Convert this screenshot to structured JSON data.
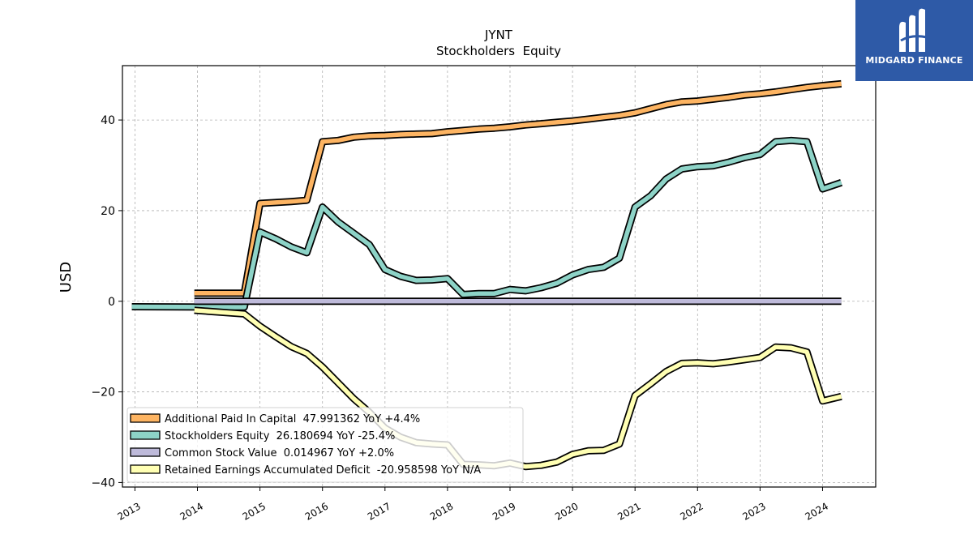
{
  "chart_data": {
    "type": "line",
    "title": "JYNT",
    "subtitle": "Stockholders  Equity",
    "ylabel": "USD",
    "xlabel": "",
    "ylim": [
      -41,
      52
    ],
    "xlim": [
      2012.8,
      2024.85
    ],
    "grid": true,
    "legend_position": "lower-left",
    "x_ticks": [
      "2013",
      "2014",
      "2015",
      "2016",
      "2017",
      "2018",
      "2019",
      "2020",
      "2021",
      "2022",
      "2023",
      "2024"
    ],
    "y_ticks": [
      -40,
      -20,
      0,
      20,
      40
    ],
    "y_tick_labels": [
      "−40",
      "−20",
      "0",
      "20",
      "40"
    ],
    "series": [
      {
        "name": "Additional Paid In Capital  47.991362 YoY +4.4%",
        "color": "#fdb462",
        "x": [
          2013.95,
          2014.75,
          2015.0,
          2015.25,
          2015.5,
          2015.75,
          2016.0,
          2016.25,
          2016.5,
          2016.75,
          2017.0,
          2017.25,
          2017.5,
          2017.75,
          2018.0,
          2018.25,
          2018.5,
          2018.75,
          2019.0,
          2019.25,
          2019.5,
          2019.75,
          2020.0,
          2020.25,
          2020.5,
          2020.75,
          2021.0,
          2021.25,
          2021.5,
          2021.75,
          2022.0,
          2022.25,
          2022.5,
          2022.75,
          2023.0,
          2023.25,
          2023.5,
          2023.75,
          2024.0,
          2024.3
        ],
        "y": [
          1.8,
          1.8,
          21.6,
          21.8,
          22.0,
          22.3,
          35.2,
          35.5,
          36.2,
          36.5,
          36.6,
          36.8,
          36.9,
          37.0,
          37.4,
          37.7,
          38.0,
          38.2,
          38.5,
          38.9,
          39.2,
          39.5,
          39.8,
          40.2,
          40.6,
          41.0,
          41.6,
          42.5,
          43.4,
          44.0,
          44.2,
          44.6,
          45.0,
          45.5,
          45.8,
          46.2,
          46.7,
          47.2,
          47.6,
          48.0
        ]
      },
      {
        "name": "Stockholders Equity  26.180694 YoY -25.4%",
        "color": "#8dd3c7",
        "x": [
          2012.95,
          2014.75,
          2015.0,
          2015.25,
          2015.5,
          2015.75,
          2016.0,
          2016.25,
          2016.5,
          2016.75,
          2017.0,
          2017.25,
          2017.5,
          2017.75,
          2018.0,
          2018.25,
          2018.5,
          2018.75,
          2019.0,
          2019.25,
          2019.5,
          2019.75,
          2020.0,
          2020.25,
          2020.5,
          2020.75,
          2021.0,
          2021.25,
          2021.5,
          2021.75,
          2022.0,
          2022.25,
          2022.5,
          2022.75,
          2023.0,
          2023.25,
          2023.5,
          2023.75,
          2024.0,
          2024.3
        ],
        "y": [
          -1.2,
          -1.3,
          15.3,
          13.8,
          12.0,
          10.7,
          20.8,
          17.5,
          15.0,
          12.5,
          7.0,
          5.5,
          4.6,
          4.7,
          5.0,
          1.5,
          1.7,
          1.7,
          2.6,
          2.3,
          3.0,
          4.0,
          5.8,
          7.0,
          7.5,
          9.5,
          20.8,
          23.3,
          27.0,
          29.2,
          29.7,
          29.9,
          30.7,
          31.7,
          32.4,
          35.2,
          35.5,
          35.2,
          24.8,
          26.2
        ]
      },
      {
        "name": "Common Stock Value  0.014967 YoY +2.0%",
        "color": "#bebada",
        "x": [
          2013.95,
          2024.3
        ],
        "y": [
          0.01,
          0.015
        ]
      },
      {
        "name": "Retained Earnings Accumulated Deficit  -20.958598 YoY N/A",
        "color": "#ffffb3",
        "x": [
          2013.95,
          2014.75,
          2015.0,
          2015.25,
          2015.5,
          2015.75,
          2016.0,
          2016.25,
          2016.5,
          2016.75,
          2017.0,
          2017.25,
          2017.5,
          2017.75,
          2018.0,
          2018.25,
          2018.5,
          2018.75,
          2019.0,
          2019.25,
          2019.5,
          2019.75,
          2020.0,
          2020.25,
          2020.5,
          2020.75,
          2021.0,
          2021.25,
          2021.5,
          2021.75,
          2022.0,
          2022.25,
          2022.5,
          2022.75,
          2023.0,
          2023.25,
          2023.5,
          2023.75,
          2024.0,
          2024.3
        ],
        "y": [
          -2.0,
          -2.8,
          -5.5,
          -7.8,
          -10.0,
          -11.5,
          -14.5,
          -18.0,
          -21.5,
          -24.5,
          -28.0,
          -30.0,
          -31.2,
          -31.5,
          -31.7,
          -36.0,
          -36.1,
          -36.3,
          -35.7,
          -36.5,
          -36.2,
          -35.5,
          -33.8,
          -33.0,
          -32.9,
          -31.5,
          -20.8,
          -18.2,
          -15.5,
          -13.7,
          -13.6,
          -13.8,
          -13.4,
          -12.9,
          -12.4,
          -10.1,
          -10.3,
          -11.2,
          -22.0,
          -21.0
        ]
      }
    ]
  },
  "brand": {
    "name": "MIDGARD FINANCE",
    "color": "#2e5aa7",
    "icon": "midgard-logo-icon"
  }
}
